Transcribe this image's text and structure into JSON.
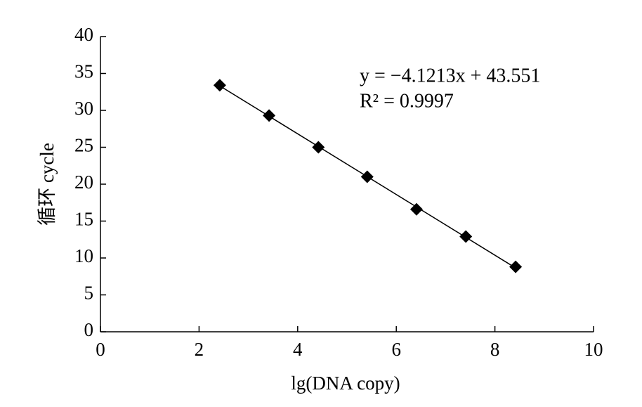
{
  "chart_data": {
    "type": "scatter",
    "x_label": "lg(DNA copy)",
    "y_label": "循环 cycle",
    "annotations": [
      "y = −4.1213x + 43.551",
      "R² = 0.9997"
    ],
    "series": [
      {
        "color": "#000000",
        "x": [
          2.42,
          3.42,
          4.42,
          5.41,
          6.41,
          7.41,
          8.42
        ],
        "values": [
          33.4,
          29.3,
          25.0,
          21.0,
          16.6,
          12.9,
          8.8
        ]
      }
    ],
    "xlim": [
      0,
      10
    ],
    "xticks": [
      0,
      2,
      4,
      6,
      8,
      10
    ],
    "ylim": [
      0,
      40
    ],
    "yticks": [
      0,
      5,
      10,
      15,
      20,
      25,
      30,
      35,
      40
    ],
    "trendline": "linear",
    "grid": false
  }
}
